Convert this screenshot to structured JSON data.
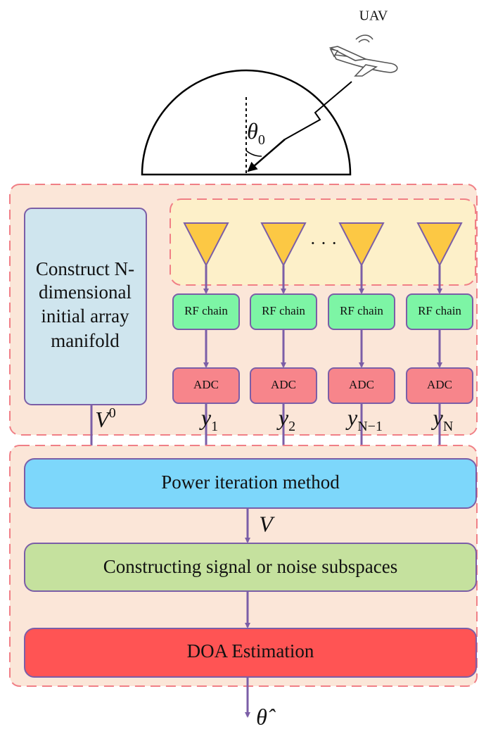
{
  "uav_label": "UAV",
  "angle": {
    "base": "θ",
    "sub": "0"
  },
  "manifold_box": {
    "lines": [
      "Construct N-",
      "dimensional",
      "initial array",
      "manifold"
    ]
  },
  "manifold_output": {
    "base": "V",
    "sup": "0"
  },
  "antenna_gap": "· · ·",
  "chains": [
    {
      "rf": "RF chain",
      "adc": "ADC",
      "output": {
        "base": "y",
        "sub": "1"
      }
    },
    {
      "rf": "RF chain",
      "adc": "ADC",
      "output": {
        "base": "y",
        "sub": "2"
      }
    },
    {
      "rf": "RF chain",
      "adc": "ADC",
      "output": {
        "base": "y",
        "sub": "N−1"
      }
    },
    {
      "rf": "RF chain",
      "adc": "ADC",
      "output": {
        "base": "y",
        "sub": "N"
      }
    }
  ],
  "steps": [
    {
      "label": "Power iteration method",
      "output": "V"
    },
    {
      "label": "Constructing signal or noise subspaces"
    },
    {
      "label": "DOA Estimation",
      "output": "θ̂"
    }
  ]
}
